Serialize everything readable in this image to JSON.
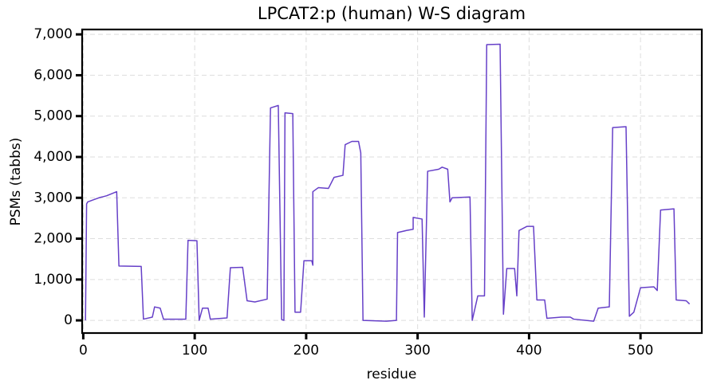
{
  "chart_data": {
    "type": "line",
    "title": "LPCAT2:p (human) W-S diagram",
    "xlabel": "residue",
    "ylabel": "PSMs (tabbs)",
    "x": [
      2,
      3,
      4,
      9,
      14,
      21,
      30,
      32,
      52,
      54,
      62,
      64,
      69,
      72,
      92,
      94,
      102,
      104,
      107,
      112,
      114,
      129,
      132,
      143,
      147,
      154,
      165,
      168,
      175,
      178,
      180,
      181,
      188,
      190,
      195,
      198,
      205,
      206,
      206,
      211,
      220,
      225,
      233,
      235,
      241,
      247,
      249,
      251,
      272,
      281,
      282,
      290,
      296,
      296,
      304,
      306,
      309,
      319,
      322,
      327,
      329,
      331,
      347,
      349,
      354,
      360,
      362,
      374,
      377,
      380,
      387,
      389,
      391,
      398,
      404,
      407,
      414,
      416,
      429,
      437,
      440,
      458,
      462,
      472,
      475,
      487,
      490,
      494,
      500,
      512,
      515,
      518,
      530,
      532,
      541,
      544
    ],
    "series": [
      {
        "name": "LPCAT2",
        "color": "#6640c8",
        "values": [
          0,
          2850,
          2900,
          2950,
          3000,
          3050,
          3150,
          1330,
          1320,
          30,
          80,
          330,
          300,
          30,
          30,
          1960,
          1950,
          0,
          300,
          300,
          30,
          60,
          1290,
          1300,
          480,
          450,
          520,
          5200,
          5260,
          20,
          0,
          5080,
          5060,
          200,
          200,
          1460,
          1460,
          1350,
          3150,
          3250,
          3230,
          3500,
          3550,
          4300,
          4380,
          4380,
          4100,
          0,
          -20,
          0,
          2150,
          2200,
          2230,
          2520,
          2480,
          80,
          3650,
          3700,
          3750,
          3700,
          2900,
          3000,
          3020,
          0,
          600,
          600,
          6750,
          6760,
          150,
          1270,
          1270,
          600,
          2200,
          2300,
          2300,
          500,
          500,
          50,
          80,
          80,
          30,
          -20,
          300,
          330,
          4720,
          4740,
          100,
          200,
          800,
          820,
          730,
          2700,
          2730,
          500,
          480,
          400
        ]
      }
    ],
    "xlim": [
      -1,
      555
    ],
    "ylim": [
      -310,
      7120
    ],
    "xticks": [
      0,
      100,
      200,
      300,
      400,
      500
    ],
    "yticks": [
      0,
      {
        "value": 1000,
        "label": "1,000"
      },
      {
        "value": 2000,
        "label": "2,000"
      },
      {
        "value": 3000,
        "label": "3,000"
      },
      {
        "value": 4000,
        "label": "4,000"
      },
      {
        "value": 5000,
        "label": "5,000"
      },
      {
        "value": 6000,
        "label": "6,000"
      },
      {
        "value": 7000,
        "label": "7,000"
      }
    ],
    "grid": true
  }
}
